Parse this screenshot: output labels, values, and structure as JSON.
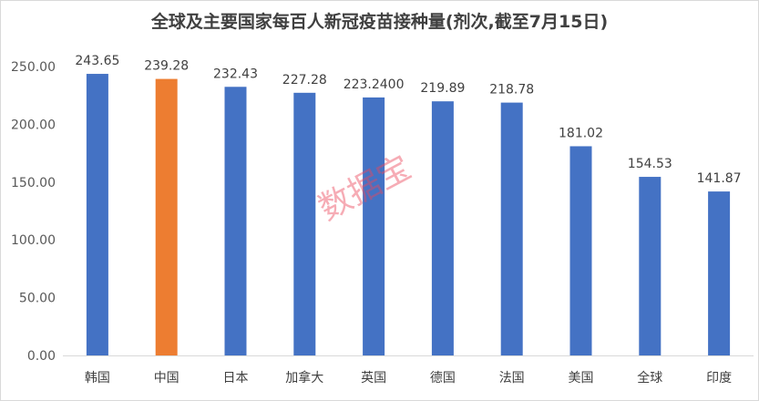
{
  "chart_data": {
    "type": "bar",
    "title": "全球及主要国家每百人新冠疫苗接种量(剂次,截至7月15日)",
    "categories": [
      "韩国",
      "中国",
      "日本",
      "加拿大",
      "英国",
      "德国",
      "法国",
      "美国",
      "全球",
      "印度"
    ],
    "values": [
      243.65,
      239.28,
      232.43,
      227.28,
      223.24,
      219.89,
      218.78,
      181.02,
      154.53,
      141.87
    ],
    "data_labels": [
      "243.65",
      "239.28",
      "232.43",
      "227.28",
      "223.2400",
      "219.89",
      "218.78",
      "181.02",
      "154.53",
      "141.87"
    ],
    "highlight_index": 1,
    "y_ticks": [
      "0.00",
      "50.00",
      "100.00",
      "150.00",
      "200.00",
      "250.00"
    ],
    "ylim": [
      0,
      250
    ],
    "xlabel": "",
    "ylabel": "",
    "grid": false,
    "colors": {
      "bar": "#4472C4",
      "highlight": "#ED7D31",
      "axis": "#d9d9d9",
      "text": "#595959"
    }
  },
  "watermark": "数据宝"
}
